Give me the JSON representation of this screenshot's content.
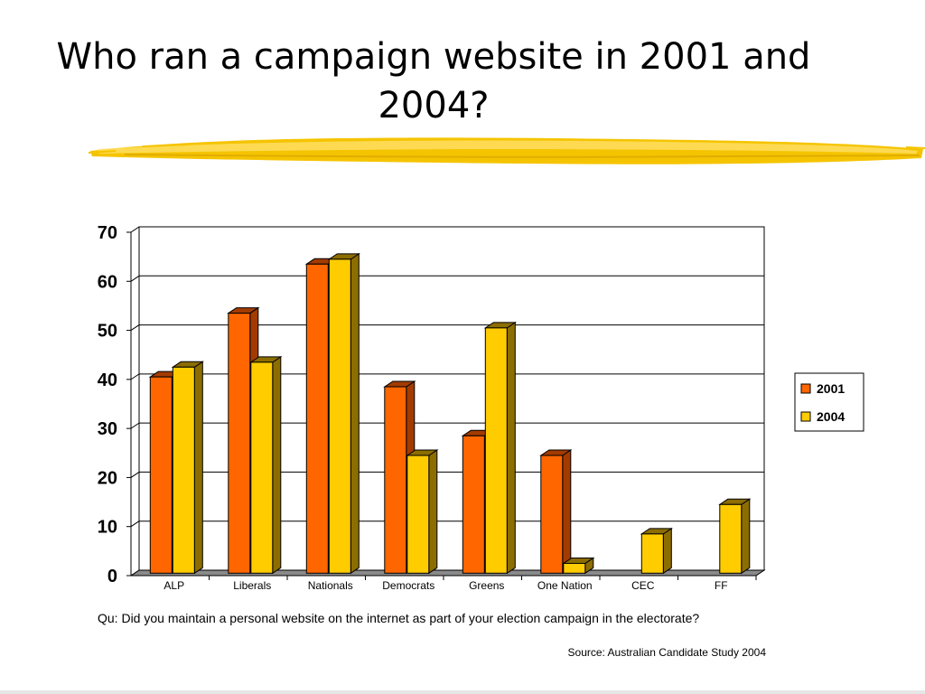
{
  "slide": {
    "title": "Who ran a campaign website in 2001 and 2004?",
    "question": "Qu: Did you maintain a personal website on the internet as part of your election campaign in the electorate?",
    "source": "Source: Australian Candidate Study 2004"
  },
  "colors": {
    "series_2001": "#FF6600",
    "series_2001_dark": "#A33B00",
    "series_2004": "#FFCC00",
    "series_2004_dark": "#8C6D00",
    "accent_brush": "#F2C200"
  },
  "chart_data": {
    "type": "bar",
    "categories": [
      "ALP",
      "Liberals",
      "Nationals",
      "Democrats",
      "Greens",
      "One Nation",
      "CEC",
      "FF"
    ],
    "series": [
      {
        "name": "2001",
        "values": [
          40,
          53,
          63,
          38,
          28,
          24,
          0,
          0
        ]
      },
      {
        "name": "2004",
        "values": [
          42,
          43,
          64,
          24,
          50,
          2,
          8,
          14
        ]
      }
    ],
    "ylim": [
      0,
      70
    ],
    "yticks": [
      0,
      10,
      20,
      30,
      40,
      50,
      60,
      70
    ],
    "grid": true,
    "legend": "right",
    "three_d": true
  }
}
